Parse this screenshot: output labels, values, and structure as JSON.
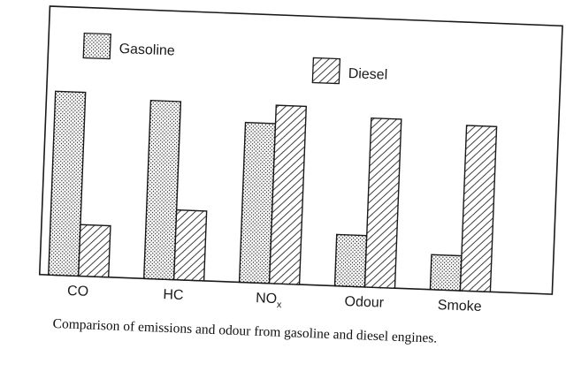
{
  "chart_data": {
    "type": "bar",
    "categories": [
      "CO",
      "HC",
      "NO",
      "Odour",
      "Smoke"
    ],
    "category_subscripts": [
      "",
      "",
      "x",
      "",
      ""
    ],
    "series": [
      {
        "name": "Gasoline",
        "values": [
          100,
          97,
          87,
          28,
          19
        ],
        "pattern": "dotted"
      },
      {
        "name": "Diesel",
        "values": [
          28,
          38,
          97,
          92,
          90
        ],
        "pattern": "hatched"
      }
    ],
    "ylim": [
      0,
      100
    ],
    "xlabel": "",
    "ylabel": "",
    "title": "",
    "grid": false,
    "legend": "top",
    "caption": "Comparison of emissions and odour from gasoline and diesel engines."
  },
  "colors": {
    "ink": "#1a1a1a",
    "background": "#ffffff"
  }
}
